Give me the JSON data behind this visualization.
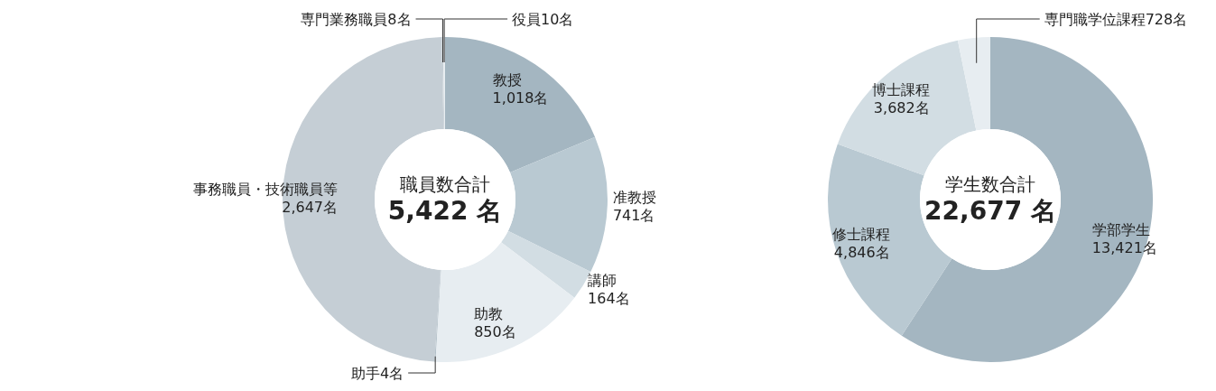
{
  "chart_data": [
    {
      "type": "donut",
      "title": "職員数合計",
      "subtitle": "5,422 名",
      "categories": [
        "教授",
        "准教授",
        "講師",
        "助教",
        "助手",
        "事務職員・技術職員等",
        "専門業務職員",
        "役員"
      ],
      "values": [
        1018,
        741,
        164,
        850,
        4,
        2647,
        8,
        10
      ],
      "value_labels": [
        "1,018名",
        "741名",
        "164名",
        "850名",
        "4名",
        "2,647名",
        "8名",
        "10名"
      ],
      "colors": [
        "#a4b6c1",
        "#b9c9d2",
        "#d2dde3",
        "#e7edf1",
        "#9fb0bb",
        "#c5ced5",
        "#c5ced5",
        "#e7edf1"
      ]
    },
    {
      "type": "donut",
      "title": "学生数合計",
      "subtitle": "22,677 名",
      "categories": [
        "学部学生",
        "修士課程",
        "博士課程",
        "専門職学位課程"
      ],
      "values": [
        13421,
        4846,
        3682,
        728
      ],
      "value_labels": [
        "13,421名",
        "4,846名",
        "3,682名",
        "728名"
      ],
      "colors": [
        "#a4b6c1",
        "#b9c9d2",
        "#d2dde3",
        "#e7edf1"
      ]
    }
  ]
}
